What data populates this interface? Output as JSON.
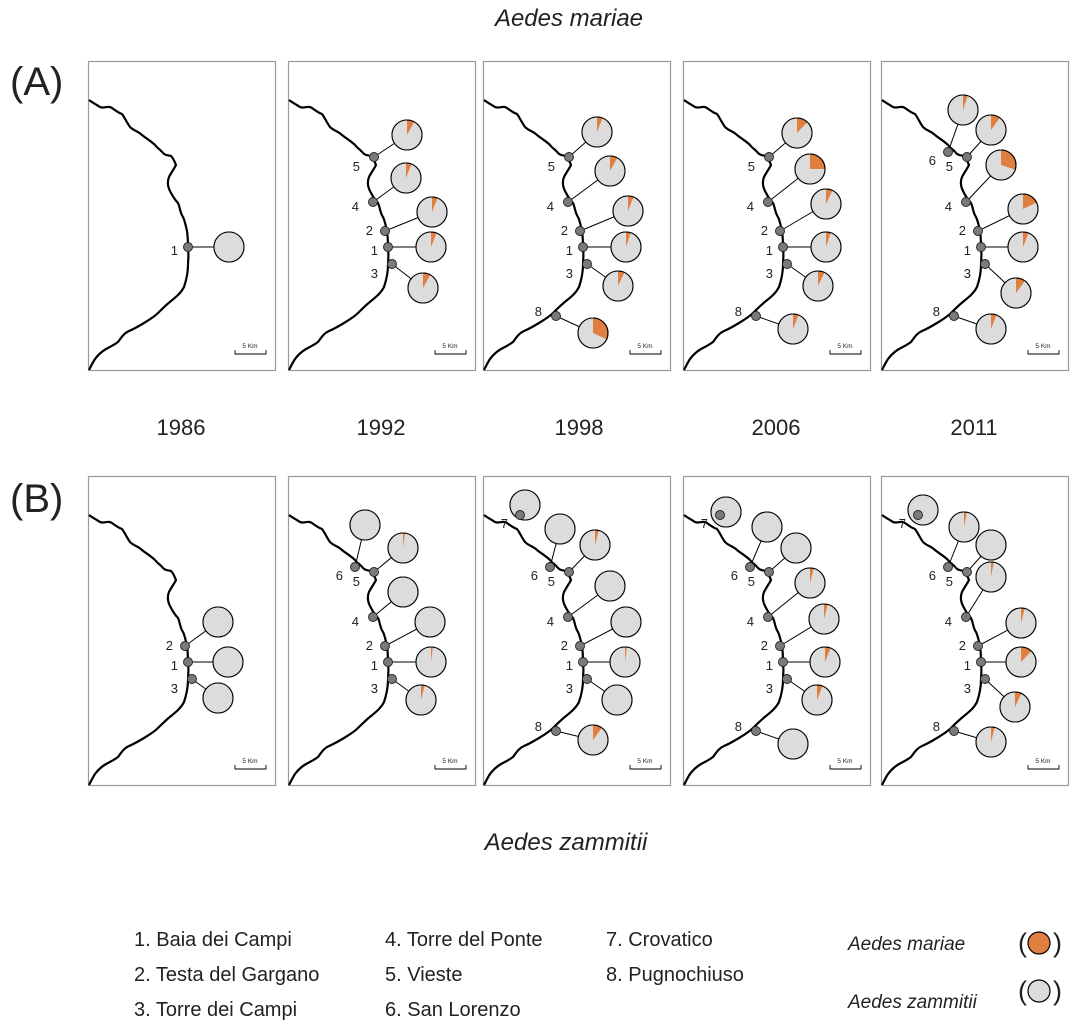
{
  "figure": {
    "top_title": "Aedes mariae",
    "bottom_title": "Aedes zammitii",
    "panel_a_label": "(A)",
    "panel_b_label": "(B)",
    "scale_label": "5 Km",
    "years": [
      "1986",
      "1992",
      "1998",
      "2006",
      "2011"
    ]
  },
  "colors": {
    "mariae": "#e07f3f",
    "zammitii": "#dcdcdc",
    "site_dot": "#7a7a7a",
    "frame": "#9a9a9a",
    "coast": "#000000"
  },
  "sites": [
    {
      "num": "1",
      "name": "Baia dei Campi"
    },
    {
      "num": "2",
      "name": "Testa del Gargano"
    },
    {
      "num": "3",
      "name": "Torre dei Campi"
    },
    {
      "num": "4",
      "name": "Torre del Ponte"
    },
    {
      "num": "5",
      "name": "Vieste"
    },
    {
      "num": "6",
      "name": "San Lorenzo"
    },
    {
      "num": "7",
      "name": "Crovatico"
    },
    {
      "num": "8",
      "name": "Pugnochiuso"
    }
  ],
  "legend": {
    "site_entries": [
      "1. Baia dei Campi",
      "2. Testa del Gargano",
      "3. Torre dei Campi",
      "4. Torre del Ponte",
      "5. Vieste",
      "6. San Lorenzo",
      "7. Crovatico",
      "8. Pugnochiuso"
    ],
    "species": [
      {
        "name": "Aedes mariae",
        "color": "#e07f3f"
      },
      {
        "name": "Aedes zammitii",
        "color": "#dcdcdc"
      }
    ]
  },
  "chart_data": {
    "type": "pie",
    "description_units": "fraction of sampled individuals that are Aedes mariae (remainder Aedes zammitii)",
    "panels": [
      {
        "panel": "A",
        "species": "Aedes mariae",
        "year": "1986",
        "sites": {
          "1": 0.0
        }
      },
      {
        "panel": "A",
        "species": "Aedes mariae",
        "year": "1992",
        "sites": {
          "5": 0.08,
          "4": 0.06,
          "2": 0.06,
          "1": 0.06,
          "3": 0.08
        }
      },
      {
        "panel": "A",
        "species": "Aedes mariae",
        "year": "1998",
        "sites": {
          "5": 0.06,
          "4": 0.08,
          "2": 0.06,
          "1": 0.05,
          "3": 0.07,
          "8": 0.32
        }
      },
      {
        "panel": "A",
        "species": "Aedes mariae",
        "year": "2006",
        "sites": {
          "5": 0.12,
          "4": 0.25,
          "2": 0.07,
          "1": 0.05,
          "3": 0.07,
          "8": 0.06
        }
      },
      {
        "panel": "A",
        "species": "Aedes mariae",
        "year": "2011",
        "sites": {
          "6": 0.05,
          "5": 0.1,
          "4": 0.3,
          "2": 0.18,
          "1": 0.06,
          "3": 0.1,
          "8": 0.06
        }
      },
      {
        "panel": "B",
        "species": "Aedes zammitii",
        "year": "1986",
        "sites": {
          "2": 0.0,
          "1": 0.0,
          "3": 0.0
        }
      },
      {
        "panel": "B",
        "species": "Aedes zammitii",
        "year": "1992",
        "sites": {
          "6": 0.0,
          "5": 0.02,
          "4": 0.0,
          "2": 0.0,
          "1": 0.02,
          "3": 0.04
        }
      },
      {
        "panel": "B",
        "species": "Aedes zammitii",
        "year": "1998",
        "sites": {
          "7": 0.0,
          "6": 0.0,
          "5": 0.04,
          "4": 0.0,
          "2": 0.0,
          "1": 0.02,
          "3": 0.0,
          "8": 0.1
        }
      },
      {
        "panel": "B",
        "species": "Aedes zammitii",
        "year": "2006",
        "sites": {
          "7": 0.0,
          "6": 0.0,
          "5": 0.0,
          "4": 0.04,
          "2": 0.04,
          "1": 0.06,
          "3": 0.06,
          "8": 0.0
        }
      },
      {
        "panel": "B",
        "species": "Aedes zammitii",
        "year": "2011",
        "sites": {
          "7": 0.0,
          "6": 0.03,
          "5": 0.0,
          "4": 0.03,
          "2": 0.04,
          "1": 0.12,
          "3": 0.07,
          "8": 0.04
        }
      }
    ]
  }
}
